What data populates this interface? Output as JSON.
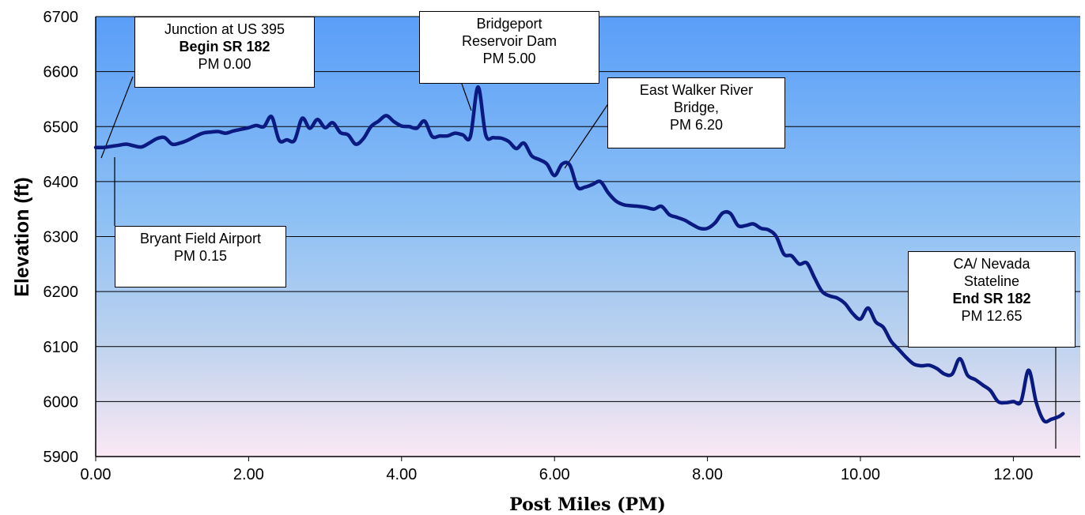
{
  "chart_data": {
    "type": "line",
    "xlabel": "Post Miles (PM)",
    "ylabel": "Elevation (ft)",
    "xlim": [
      0,
      13
    ],
    "ylim": [
      5900,
      6700
    ],
    "x_ticks": [
      "0.00",
      "2.00",
      "4.00",
      "6.00",
      "8.00",
      "10.00",
      "12.00"
    ],
    "y_ticks": [
      "5900",
      "6000",
      "6100",
      "6200",
      "6300",
      "6400",
      "6500",
      "6600",
      "6700"
    ],
    "grid": true,
    "background": "vertical gradient blue to pink",
    "line_color": "#0a1a80",
    "series": [
      {
        "x": [
          0.0,
          0.1,
          0.2,
          0.3,
          0.4,
          0.5,
          0.6,
          0.7,
          0.8,
          0.9,
          1.0,
          1.1,
          1.2,
          1.3,
          1.4,
          1.5,
          1.6,
          1.7,
          1.8,
          1.9,
          2.0,
          2.1,
          2.2,
          2.3,
          2.4,
          2.5,
          2.6,
          2.7,
          2.8,
          2.9,
          3.0,
          3.1,
          3.2,
          3.3,
          3.4,
          3.5,
          3.6,
          3.7,
          3.8,
          3.9,
          4.0,
          4.1,
          4.2,
          4.3,
          4.4,
          4.5,
          4.6,
          4.7,
          4.8,
          4.9,
          5.0,
          5.1,
          5.2,
          5.3,
          5.4,
          5.5,
          5.6,
          5.7,
          5.8,
          5.9,
          6.0,
          6.1,
          6.2,
          6.3,
          6.4,
          6.5,
          6.6,
          6.7,
          6.8,
          6.9,
          7.0,
          7.1,
          7.2,
          7.3,
          7.4,
          7.5,
          7.6,
          7.7,
          7.8,
          7.9,
          8.0,
          8.1,
          8.2,
          8.3,
          8.4,
          8.5,
          8.6,
          8.7,
          8.8,
          8.9,
          9.0,
          9.1,
          9.2,
          9.3,
          9.4,
          9.5,
          9.6,
          9.7,
          9.8,
          9.9,
          10.0,
          10.1,
          10.2,
          10.3,
          10.4,
          10.5,
          10.6,
          10.7,
          10.8,
          10.9,
          11.0,
          11.1,
          11.2,
          11.3,
          11.4,
          11.5,
          11.6,
          11.7,
          11.8,
          11.9,
          12.0,
          12.1,
          12.2,
          12.3,
          12.4,
          12.5,
          12.6,
          12.65
        ],
        "y": [
          6462,
          6462,
          6464,
          6466,
          6468,
          6465,
          6463,
          6470,
          6478,
          6480,
          6468,
          6470,
          6475,
          6482,
          6488,
          6490,
          6491,
          6488,
          6492,
          6495,
          6498,
          6502,
          6500,
          6518,
          6475,
          6476,
          6475,
          6515,
          6497,
          6513,
          6498,
          6507,
          6489,
          6485,
          6468,
          6478,
          6500,
          6510,
          6520,
          6509,
          6501,
          6500,
          6497,
          6510,
          6482,
          6483,
          6483,
          6488,
          6485,
          6482,
          6572,
          6485,
          6480,
          6479,
          6473,
          6460,
          6470,
          6447,
          6440,
          6432,
          6411,
          6432,
          6430,
          6390,
          6390,
          6395,
          6400,
          6380,
          6365,
          6358,
          6356,
          6355,
          6353,
          6350,
          6355,
          6340,
          6335,
          6330,
          6322,
          6315,
          6315,
          6325,
          6343,
          6342,
          6320,
          6320,
          6323,
          6315,
          6312,
          6300,
          6268,
          6265,
          6250,
          6252,
          6225,
          6200,
          6192,
          6188,
          6178,
          6160,
          6150,
          6170,
          6145,
          6135,
          6110,
          6095,
          6080,
          6068,
          6065,
          6066,
          6060,
          6050,
          6050,
          6078,
          6048,
          6040,
          6030,
          6020,
          6000,
          5998,
          6000,
          6000,
          6057,
          5998,
          5965,
          5968,
          5973,
          5978
        ]
      }
    ],
    "annotations": [
      {
        "lines": [
          "Junction at US 395",
          "Begin SR 182",
          "PM 0.00"
        ],
        "bold_line": 1
      },
      {
        "lines": [
          "Bridgeport",
          "Reservoir Dam",
          "PM 5.00"
        ]
      },
      {
        "lines": [
          "East Walker River",
          "Bridge,",
          "PM 6.20"
        ]
      },
      {
        "lines": [
          "Bryant Field Airport",
          "PM 0.15"
        ]
      },
      {
        "lines": [
          "CA/ Nevada",
          "Stateline",
          "End SR 182",
          "PM 12.65"
        ],
        "bold_line": 2
      }
    ]
  }
}
